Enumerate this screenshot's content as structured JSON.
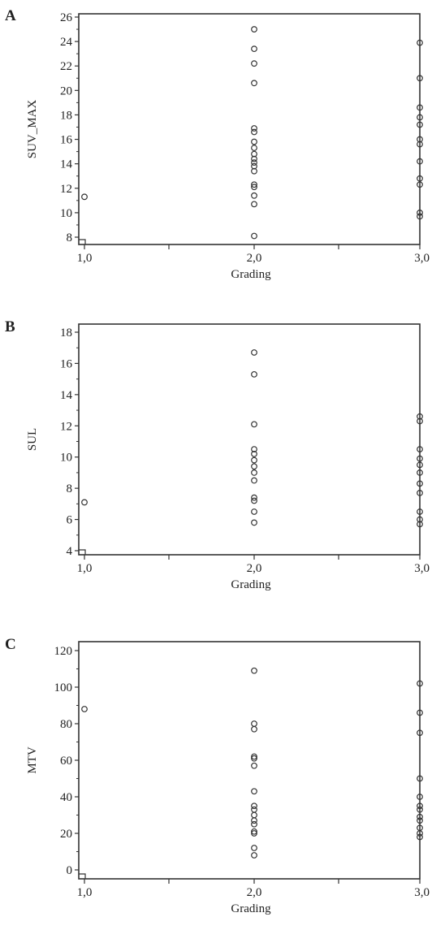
{
  "chart_data": [
    {
      "type": "scatter",
      "panel_label": "A",
      "xlabel": "Grading",
      "ylabel": "SUV_MAX",
      "xlim": [
        1.0,
        3.0
      ],
      "ylim": [
        8,
        26
      ],
      "x_ticks": [
        1.0,
        2.0,
        3.0
      ],
      "x_tick_labels": [
        "1,0",
        "2,0",
        "3,0"
      ],
      "y_ticks": [
        8,
        10,
        12,
        14,
        16,
        18,
        20,
        22,
        24,
        26
      ],
      "y_tick_labels": [
        "8",
        "10",
        "12",
        "14",
        "16",
        "18",
        "20",
        "22",
        "24",
        "26"
      ],
      "grid": false,
      "series": [
        {
          "points": [
            {
              "x": 1.0,
              "y": 11.3
            },
            {
              "x": 2.0,
              "y": 25.0
            },
            {
              "x": 2.0,
              "y": 23.4
            },
            {
              "x": 2.0,
              "y": 22.2
            },
            {
              "x": 2.0,
              "y": 20.6
            },
            {
              "x": 2.0,
              "y": 16.9
            },
            {
              "x": 2.0,
              "y": 16.6
            },
            {
              "x": 2.0,
              "y": 15.8
            },
            {
              "x": 2.0,
              "y": 15.3
            },
            {
              "x": 2.0,
              "y": 14.8
            },
            {
              "x": 2.0,
              "y": 14.4
            },
            {
              "x": 2.0,
              "y": 14.1
            },
            {
              "x": 2.0,
              "y": 13.8
            },
            {
              "x": 2.0,
              "y": 13.4
            },
            {
              "x": 2.0,
              "y": 12.3
            },
            {
              "x": 2.0,
              "y": 12.1
            },
            {
              "x": 2.0,
              "y": 11.4
            },
            {
              "x": 2.0,
              "y": 10.7
            },
            {
              "x": 2.0,
              "y": 8.1
            },
            {
              "x": 3.0,
              "y": 23.9
            },
            {
              "x": 3.0,
              "y": 21.0
            },
            {
              "x": 3.0,
              "y": 18.6
            },
            {
              "x": 3.0,
              "y": 17.8
            },
            {
              "x": 3.0,
              "y": 17.2
            },
            {
              "x": 3.0,
              "y": 16.0
            },
            {
              "x": 3.0,
              "y": 15.6
            },
            {
              "x": 3.0,
              "y": 14.2
            },
            {
              "x": 3.0,
              "y": 12.8
            },
            {
              "x": 3.0,
              "y": 12.3
            },
            {
              "x": 3.0,
              "y": 10.0
            },
            {
              "x": 3.0,
              "y": 9.7
            }
          ]
        }
      ]
    },
    {
      "type": "scatter",
      "panel_label": "B",
      "xlabel": "Grading",
      "ylabel": "SUL",
      "xlim": [
        1.0,
        3.0
      ],
      "ylim": [
        4,
        18
      ],
      "x_ticks": [
        1.0,
        2.0,
        3.0
      ],
      "x_tick_labels": [
        "1,0",
        "2,0",
        "3,0"
      ],
      "y_ticks": [
        4,
        6,
        8,
        10,
        12,
        14,
        16,
        18
      ],
      "y_tick_labels": [
        "4",
        "6",
        "8",
        "10",
        "12",
        "14",
        "16",
        "18"
      ],
      "grid": false,
      "series": [
        {
          "points": [
            {
              "x": 1.0,
              "y": 7.1
            },
            {
              "x": 2.0,
              "y": 16.7
            },
            {
              "x": 2.0,
              "y": 15.3
            },
            {
              "x": 2.0,
              "y": 12.1
            },
            {
              "x": 2.0,
              "y": 10.5
            },
            {
              "x": 2.0,
              "y": 10.2
            },
            {
              "x": 2.0,
              "y": 9.8
            },
            {
              "x": 2.0,
              "y": 9.4
            },
            {
              "x": 2.0,
              "y": 9.0
            },
            {
              "x": 2.0,
              "y": 8.5
            },
            {
              "x": 2.0,
              "y": 7.4
            },
            {
              "x": 2.0,
              "y": 7.2
            },
            {
              "x": 2.0,
              "y": 6.5
            },
            {
              "x": 2.0,
              "y": 5.8
            },
            {
              "x": 3.0,
              "y": 12.6
            },
            {
              "x": 3.0,
              "y": 12.3
            },
            {
              "x": 3.0,
              "y": 10.5
            },
            {
              "x": 3.0,
              "y": 9.9
            },
            {
              "x": 3.0,
              "y": 9.5
            },
            {
              "x": 3.0,
              "y": 9.0
            },
            {
              "x": 3.0,
              "y": 8.3
            },
            {
              "x": 3.0,
              "y": 7.7
            },
            {
              "x": 3.0,
              "y": 6.5
            },
            {
              "x": 3.0,
              "y": 6.0
            },
            {
              "x": 3.0,
              "y": 5.7
            }
          ]
        }
      ]
    },
    {
      "type": "scatter",
      "panel_label": "C",
      "xlabel": "Grading",
      "ylabel": "MTV",
      "xlim": [
        1.0,
        3.0
      ],
      "ylim": [
        0,
        120
      ],
      "x_ticks": [
        1.0,
        2.0,
        3.0
      ],
      "x_tick_labels": [
        "1,0",
        "2,0",
        "3,0"
      ],
      "y_ticks": [
        0,
        20,
        40,
        60,
        80,
        100,
        120
      ],
      "y_tick_labels": [
        "0",
        "20",
        "40",
        "60",
        "80",
        "100",
        "120"
      ],
      "grid": false,
      "series": [
        {
          "points": [
            {
              "x": 1.0,
              "y": 88
            },
            {
              "x": 2.0,
              "y": 109
            },
            {
              "x": 2.0,
              "y": 80
            },
            {
              "x": 2.0,
              "y": 77
            },
            {
              "x": 2.0,
              "y": 62
            },
            {
              "x": 2.0,
              "y": 61
            },
            {
              "x": 2.0,
              "y": 57
            },
            {
              "x": 2.0,
              "y": 43
            },
            {
              "x": 2.0,
              "y": 35
            },
            {
              "x": 2.0,
              "y": 33
            },
            {
              "x": 2.0,
              "y": 30
            },
            {
              "x": 2.0,
              "y": 27
            },
            {
              "x": 2.0,
              "y": 25
            },
            {
              "x": 2.0,
              "y": 21
            },
            {
              "x": 2.0,
              "y": 20
            },
            {
              "x": 2.0,
              "y": 12
            },
            {
              "x": 2.0,
              "y": 8
            },
            {
              "x": 3.0,
              "y": 102
            },
            {
              "x": 3.0,
              "y": 86
            },
            {
              "x": 3.0,
              "y": 75
            },
            {
              "x": 3.0,
              "y": 50
            },
            {
              "x": 3.0,
              "y": 40
            },
            {
              "x": 3.0,
              "y": 35
            },
            {
              "x": 3.0,
              "y": 33
            },
            {
              "x": 3.0,
              "y": 29
            },
            {
              "x": 3.0,
              "y": 27
            },
            {
              "x": 3.0,
              "y": 23
            },
            {
              "x": 3.0,
              "y": 20
            },
            {
              "x": 3.0,
              "y": 18
            }
          ]
        }
      ]
    }
  ]
}
